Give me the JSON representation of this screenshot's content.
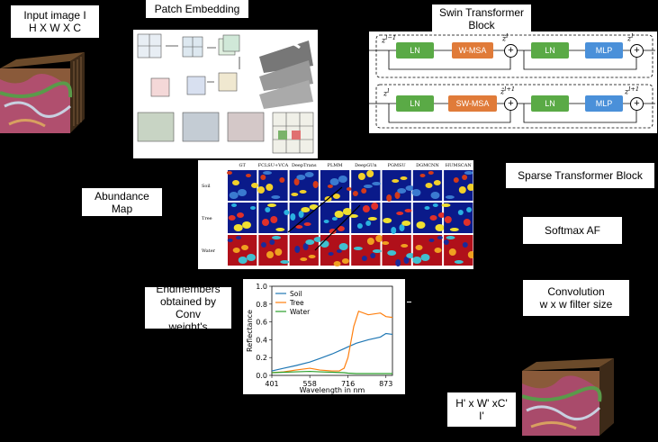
{
  "labels": {
    "input": "Input image I\nH X W X C",
    "patch": "Patch Embedding",
    "swin": "Swin Transformer\nBlock",
    "abundance": "Abundance\nMap",
    "sparse": "Sparse Transformer Block",
    "softmax": "Softmax AF",
    "endmembers": "Endmembers\nobtained by Conv\nweight's",
    "convolution": "Convolution\nw x w filter size",
    "output": "H' x W' xC'\nI'"
  },
  "swin_block": {
    "row1": [
      "LN",
      "W-MSA",
      "LN",
      "MLP"
    ],
    "row2": [
      "LN",
      "SW-MSA",
      "LN",
      "MLP"
    ],
    "z_labels": [
      "z^{l-1}",
      "ẑ^l",
      "z^l",
      "z^l",
      "ẑ^{l+1}",
      "z^{l+1}"
    ]
  },
  "abundance_grid": {
    "methods": [
      "GT",
      "FCLSU+VCA",
      "DeepTrans",
      "PLMM",
      "DeepGUn",
      "PGMSU",
      "DGMCNN",
      "HUMSCAN"
    ],
    "rows": [
      "Soil",
      "Tree",
      "Water"
    ]
  },
  "chart_data": {
    "type": "line",
    "xlabel": "Wavelength in nm",
    "ylabel": "Reflectance",
    "xticks": [
      "401",
      "558",
      "716",
      "873"
    ],
    "yticks": [
      "0.0",
      "0.2",
      "0.4",
      "0.6",
      "0.8",
      "1.0"
    ],
    "xlim": [
      401,
      900
    ],
    "ylim": [
      0,
      1.0
    ],
    "legend_position": "top-left",
    "series": [
      {
        "name": "Soil",
        "color": "#1f77b4",
        "x": [
          401,
          450,
          500,
          558,
          600,
          650,
          700,
          716,
          750,
          800,
          850,
          873,
          900
        ],
        "values": [
          0.05,
          0.08,
          0.11,
          0.15,
          0.19,
          0.24,
          0.3,
          0.32,
          0.36,
          0.4,
          0.43,
          0.47,
          0.46
        ]
      },
      {
        "name": "Tree",
        "color": "#ff7f0e",
        "x": [
          401,
          450,
          500,
          558,
          600,
          650,
          680,
          700,
          716,
          740,
          760,
          800,
          850,
          873,
          900
        ],
        "values": [
          0.03,
          0.04,
          0.06,
          0.08,
          0.06,
          0.05,
          0.05,
          0.08,
          0.2,
          0.55,
          0.72,
          0.68,
          0.7,
          0.66,
          0.65
        ]
      },
      {
        "name": "Water",
        "color": "#2ca02c",
        "x": [
          401,
          450,
          500,
          558,
          600,
          650,
          700,
          716,
          750,
          800,
          850,
          873,
          900
        ],
        "values": [
          0.03,
          0.035,
          0.04,
          0.045,
          0.04,
          0.035,
          0.03,
          0.025,
          0.02,
          0.02,
          0.02,
          0.02,
          0.02
        ]
      }
    ]
  }
}
